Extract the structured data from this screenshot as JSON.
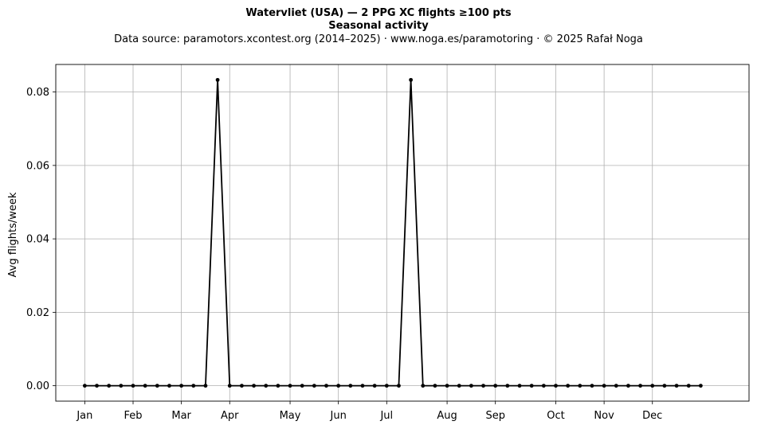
{
  "header": {
    "title_line1": "Watervliet (USA)  —  2 PPG XC flights ≥100 pts",
    "title_line2": "Seasonal activity",
    "source_line": "Data source: paramotors.xcontest.org (2014–2025)  ·  www.noga.es/paramotoring  ·  © 2025 Rafał Noga"
  },
  "chart_data": {
    "type": "line",
    "title": "Watervliet (USA)  —  2 PPG XC flights ≥100 pts",
    "subtitle": "Seasonal activity",
    "xlabel": "",
    "ylabel": "Avg flights/week",
    "x_unit": "week of year",
    "xlim": [
      -2.4,
      55.0
    ],
    "ylim": [
      -0.0042,
      0.0875
    ],
    "grid": true,
    "line_color": "#000000",
    "x_ticks": [
      {
        "label": "Jan",
        "x": 0
      },
      {
        "label": "Feb",
        "x": 4
      },
      {
        "label": "Mar",
        "x": 8
      },
      {
        "label": "Apr",
        "x": 12
      },
      {
        "label": "May",
        "x": 17
      },
      {
        "label": "Jun",
        "x": 21
      },
      {
        "label": "Jul",
        "x": 25
      },
      {
        "label": "Aug",
        "x": 30
      },
      {
        "label": "Sep",
        "x": 34
      },
      {
        "label": "Oct",
        "x": 39
      },
      {
        "label": "Nov",
        "x": 43
      },
      {
        "label": "Dec",
        "x": 47
      }
    ],
    "y_ticks": [
      {
        "label": "0.00",
        "y": 0.0
      },
      {
        "label": "0.02",
        "y": 0.02
      },
      {
        "label": "0.04",
        "y": 0.04
      },
      {
        "label": "0.06",
        "y": 0.06
      },
      {
        "label": "0.08",
        "y": 0.08
      }
    ],
    "series": [
      {
        "x": [
          0,
          1,
          2,
          3,
          4,
          5,
          6,
          7,
          8,
          9,
          10,
          11,
          12,
          13,
          14,
          15,
          16,
          17,
          18,
          19,
          20,
          21,
          22,
          23,
          24,
          25,
          26,
          27,
          28,
          29,
          30,
          31,
          32,
          33,
          34,
          35,
          36,
          37,
          38,
          39,
          40,
          41,
          42,
          43,
          44,
          45,
          46,
          47,
          48,
          49,
          50,
          51
        ],
        "values": [
          0,
          0,
          0,
          0,
          0,
          0,
          0,
          0,
          0,
          0,
          0,
          0.0833,
          0,
          0,
          0,
          0,
          0,
          0,
          0,
          0,
          0,
          0,
          0,
          0,
          0,
          0,
          0,
          0.0833,
          0,
          0,
          0,
          0,
          0,
          0,
          0,
          0,
          0,
          0,
          0,
          0,
          0,
          0,
          0,
          0,
          0,
          0,
          0,
          0,
          0,
          0,
          0,
          0
        ]
      }
    ]
  }
}
